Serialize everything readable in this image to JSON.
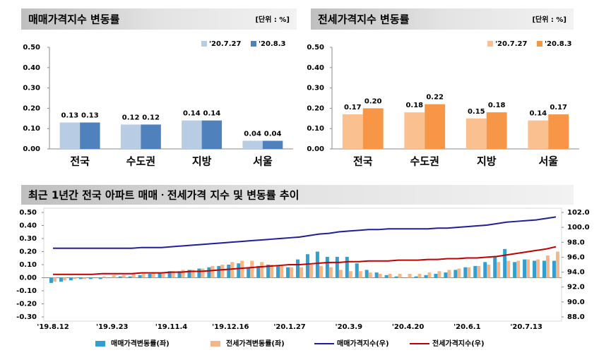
{
  "chart_data": [
    {
      "type": "bar",
      "title": "매매가격지수 변동률",
      "unit": "[단위 : %]",
      "categories": [
        "전국",
        "수도권",
        "지방",
        "서울"
      ],
      "series": [
        {
          "name": "'20.7.27",
          "color": "#b8cce4",
          "values": [
            0.13,
            0.12,
            0.14,
            0.04
          ],
          "value_labels": [
            "0.13",
            "0.12",
            "0.14",
            "0.04"
          ]
        },
        {
          "name": "'20.8.3",
          "color": "#4f81bd",
          "values": [
            0.13,
            0.12,
            0.14,
            0.04
          ],
          "value_labels": [
            "0.13",
            "0.12",
            "0.14",
            "0.04"
          ]
        }
      ],
      "ylim": [
        0,
        0.5
      ],
      "yticks": [
        {
          "value": 0.5,
          "label": "0.50"
        },
        {
          "value": 0.4,
          "label": "0.40"
        },
        {
          "value": 0.3,
          "label": "0.30"
        },
        {
          "value": 0.2,
          "label": "0.20"
        },
        {
          "value": 0.1,
          "label": "0.10"
        },
        {
          "value": 0,
          "label": "0.00"
        }
      ]
    },
    {
      "type": "bar",
      "title": "전세가격지수 변동률",
      "unit": "[단위 : %]",
      "categories": [
        "전국",
        "수도권",
        "지방",
        "서울"
      ],
      "series": [
        {
          "name": "'20.7.27",
          "color": "#fac090",
          "values": [
            0.17,
            0.18,
            0.15,
            0.14
          ],
          "value_labels": [
            "0.17",
            "0.18",
            "0.15",
            "0.14"
          ]
        },
        {
          "name": "'20.8.3",
          "color": "#f79646",
          "values": [
            0.2,
            0.22,
            0.18,
            0.17
          ],
          "value_labels": [
            "0.20",
            "0.22",
            "0.18",
            "0.17"
          ]
        }
      ],
      "ylim": [
        0,
        0.5
      ],
      "yticks": [
        {
          "value": 0.5,
          "label": "0.50"
        },
        {
          "value": 0.4,
          "label": "0.40"
        },
        {
          "value": 0.3,
          "label": "0.30"
        },
        {
          "value": 0.2,
          "label": "0.20"
        },
        {
          "value": 0.1,
          "label": "0.10"
        },
        {
          "value": 0,
          "label": "0.00"
        }
      ]
    },
    {
      "type": "combo",
      "title": "최근 1년간 전국 아파트 매매ㆍ전세가격 지수 및 변동률 추이",
      "categories": [
        "'19.8.12",
        null,
        null,
        null,
        null,
        null,
        "'19.9.23",
        null,
        null,
        null,
        null,
        null,
        "'19.11.4",
        null,
        null,
        null,
        null,
        null,
        "'19.12.16",
        null,
        null,
        null,
        null,
        null,
        "'20.1.27",
        null,
        null,
        null,
        null,
        null,
        "'20.3.9",
        null,
        null,
        null,
        null,
        null,
        "'20.4.20",
        null,
        null,
        null,
        null,
        null,
        "'20.6.1",
        null,
        null,
        null,
        null,
        null,
        "'20.7.13",
        null,
        null,
        null
      ],
      "series": [
        {
          "name": "매매가격변동률(좌)",
          "type": "bar",
          "color": "#31a0d0",
          "values": [
            -0.04,
            -0.03,
            -0.02,
            -0.01,
            -0.01,
            -0.01,
            0.0,
            0.01,
            0.01,
            0.02,
            0.03,
            0.04,
            0.05,
            0.05,
            0.06,
            0.07,
            0.08,
            0.09,
            0.1,
            0.11,
            0.08,
            0.09,
            0.1,
            0.09,
            0.08,
            0.14,
            0.18,
            0.2,
            0.16,
            0.16,
            0.16,
            0.11,
            0.06,
            0.04,
            0.02,
            0.01,
            0.0,
            0.01,
            0.02,
            0.03,
            0.04,
            0.06,
            0.08,
            0.09,
            0.12,
            0.16,
            0.22,
            0.12,
            0.14,
            0.13,
            0.13,
            0.13
          ]
        },
        {
          "name": "전세가격변동률(좌)",
          "type": "bar",
          "color": "#f5b78a",
          "values": [
            -0.03,
            -0.02,
            -0.01,
            -0.01,
            0.0,
            0.01,
            0.02,
            0.02,
            0.03,
            0.03,
            0.04,
            0.04,
            0.05,
            0.06,
            0.06,
            0.07,
            0.09,
            0.1,
            0.12,
            0.13,
            0.13,
            0.12,
            0.1,
            0.09,
            0.08,
            0.08,
            0.1,
            0.09,
            0.08,
            0.06,
            0.05,
            0.05,
            0.04,
            0.03,
            0.03,
            0.03,
            0.03,
            0.03,
            0.04,
            0.05,
            0.06,
            0.07,
            0.08,
            0.09,
            0.1,
            0.12,
            0.13,
            0.13,
            0.14,
            0.14,
            0.17,
            0.2
          ]
        },
        {
          "name": "매매가격지수(우)",
          "type": "line",
          "axis": "y2",
          "color": "#1f1f9a",
          "values": [
            97.2,
            97.2,
            97.2,
            97.2,
            97.2,
            97.2,
            97.2,
            97.2,
            97.2,
            97.3,
            97.3,
            97.3,
            97.4,
            97.5,
            97.6,
            97.7,
            97.8,
            97.9,
            98.0,
            98.1,
            98.2,
            98.3,
            98.4,
            98.5,
            98.6,
            98.7,
            98.9,
            99.1,
            99.2,
            99.4,
            99.5,
            99.6,
            99.7,
            99.7,
            99.8,
            99.8,
            99.8,
            99.8,
            99.8,
            99.9,
            99.9,
            100.0,
            100.1,
            100.2,
            100.3,
            100.5,
            100.7,
            100.8,
            100.9,
            101.0,
            101.2,
            101.4
          ]
        },
        {
          "name": "전세가격지수(우)",
          "type": "line",
          "axis": "y2",
          "color": "#c00000",
          "values": [
            93.7,
            93.7,
            93.7,
            93.7,
            93.7,
            93.8,
            93.8,
            93.8,
            93.8,
            93.9,
            93.9,
            93.9,
            94.0,
            94.0,
            94.1,
            94.1,
            94.2,
            94.3,
            94.4,
            94.5,
            94.6,
            94.7,
            94.8,
            94.9,
            95.0,
            95.0,
            95.1,
            95.2,
            95.3,
            95.3,
            95.4,
            95.4,
            95.5,
            95.5,
            95.5,
            95.6,
            95.6,
            95.6,
            95.7,
            95.7,
            95.8,
            95.8,
            95.9,
            95.9,
            96.0,
            96.1,
            96.3,
            96.5,
            96.7,
            96.9,
            97.1,
            97.4
          ]
        }
      ],
      "ylim": [
        -0.3,
        0.5
      ],
      "yticks": [
        {
          "value": 0.5,
          "label": "0.50"
        },
        {
          "value": 0.4,
          "label": "0.40"
        },
        {
          "value": 0.3,
          "label": "0.30"
        },
        {
          "value": 0.2,
          "label": "0.20"
        },
        {
          "value": 0.1,
          "label": "0.10"
        },
        {
          "value": 0,
          "label": "0.00"
        },
        {
          "value": -0.1,
          "label": "-0.10"
        },
        {
          "value": -0.2,
          "label": "-0.20"
        },
        {
          "value": -0.3,
          "label": "-0.30"
        }
      ],
      "y2lim": [
        88,
        102
      ],
      "y2ticks": [
        {
          "value": 102,
          "label": "102.0"
        },
        {
          "value": 100,
          "label": "100.0"
        },
        {
          "value": 98,
          "label": "98.0"
        },
        {
          "value": 96,
          "label": "96.0"
        },
        {
          "value": 94,
          "label": "94.0"
        },
        {
          "value": 92,
          "label": "92.0"
        },
        {
          "value": 90,
          "label": "90.0"
        },
        {
          "value": 88,
          "label": "88.0"
        }
      ]
    }
  ]
}
